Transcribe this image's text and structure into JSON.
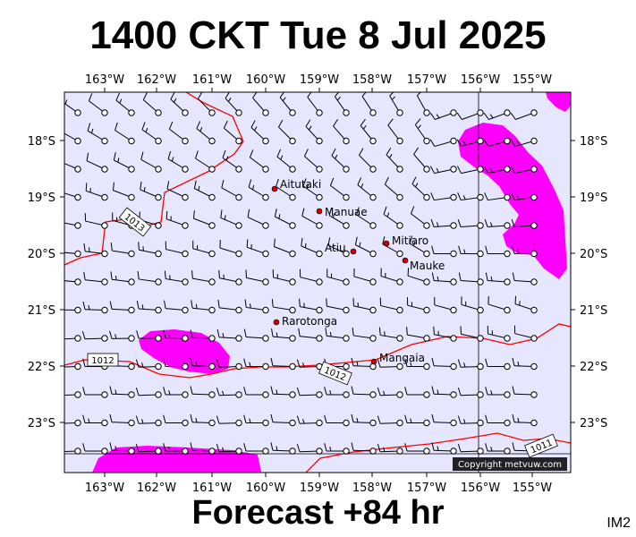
{
  "title": "1400 CKT Tue 8 Jul 2025",
  "subtitle": "Forecast +84 hr",
  "corner_label": "IM2",
  "copyright": "Copyright metvuw.com",
  "map": {
    "colors": {
      "background": "#e6e6ff",
      "rain": "#ff00ff",
      "isobar": "#ff0000",
      "wind": "#000000",
      "place": "#cc0000"
    },
    "lon_ticks": [
      "163°W",
      "162°W",
      "161°W",
      "160°W",
      "159°W",
      "158°W",
      "157°W",
      "156°W",
      "155°W"
    ],
    "lat_ticks": [
      "18°S",
      "19°S",
      "20°S",
      "21°S",
      "22°S",
      "23°S"
    ],
    "places": [
      {
        "name": "Aitutaki"
      },
      {
        "name": "Manuae"
      },
      {
        "name": "Atiu"
      },
      {
        "name": "Mitiaro"
      },
      {
        "name": "Mauke"
      },
      {
        "name": "Rarotonga"
      },
      {
        "name": "Mangaia"
      }
    ],
    "isobars": [
      {
        "label": "1013"
      },
      {
        "label": "1012"
      },
      {
        "label": "1012"
      },
      {
        "label": "1011"
      }
    ]
  }
}
